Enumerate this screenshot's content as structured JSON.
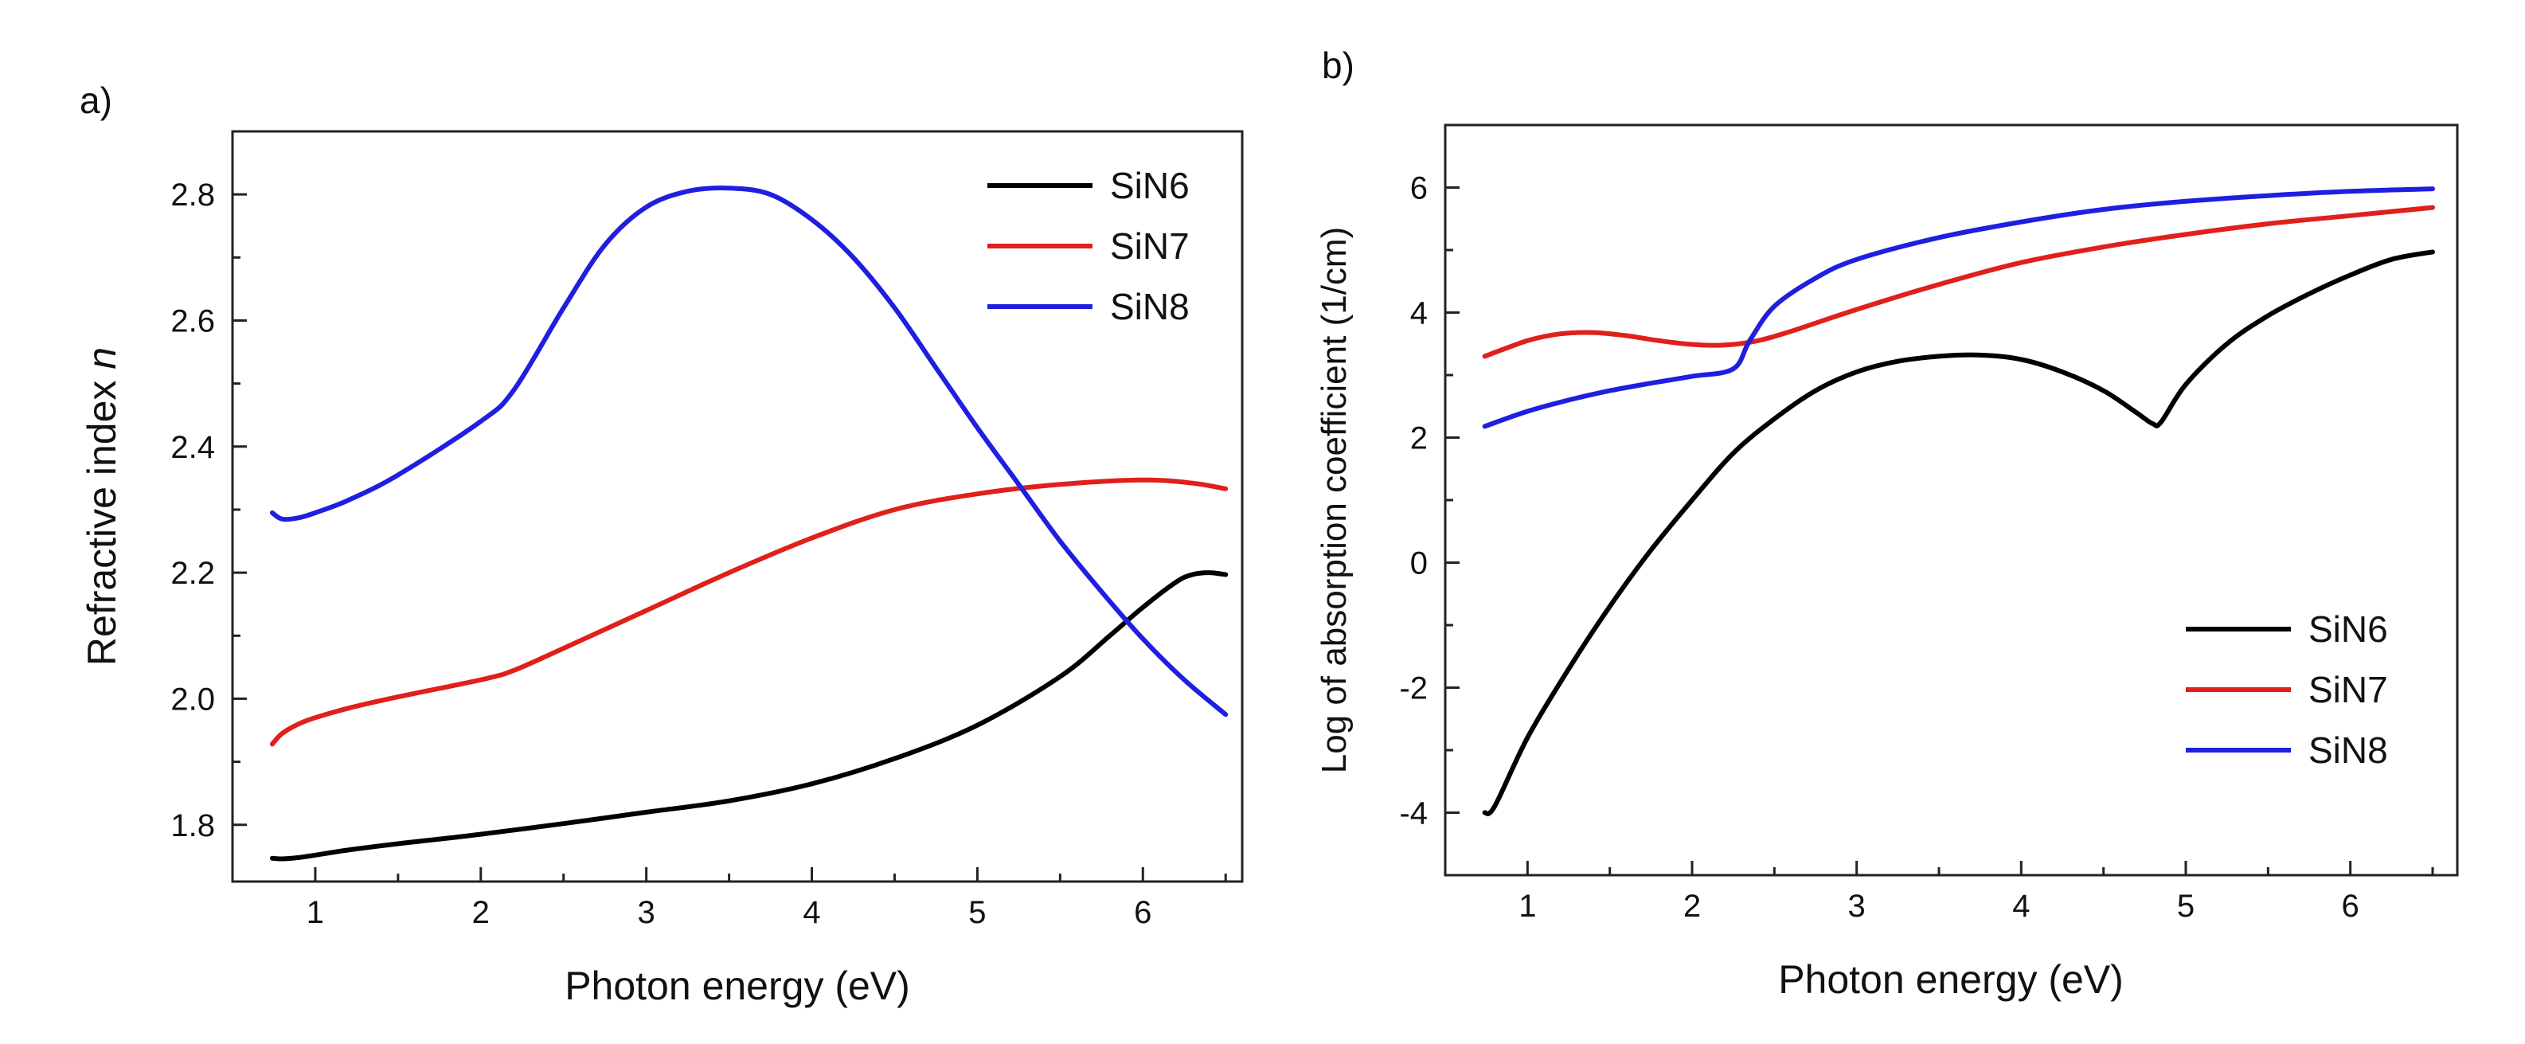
{
  "chart_data": [
    {
      "type": "line",
      "panel_label": "a)",
      "title": "",
      "xlabel": "Photon energy (eV)",
      "ylabel": "Refractive index",
      "ylabel_italic": "n",
      "xlim": [
        0.5,
        6.6
      ],
      "ylim": [
        1.71,
        2.9
      ],
      "xticks": [
        1,
        2,
        3,
        4,
        5,
        6
      ],
      "xtick_labels": [
        "1",
        "2",
        "3",
        "4",
        "5",
        "6"
      ],
      "xminor": [
        1.5,
        2.5,
        3.5,
        4.5,
        5.5,
        6.5
      ],
      "yticks": [
        1.8,
        2.0,
        2.2,
        2.4,
        2.6,
        2.8
      ],
      "ytick_labels": [
        "1.8",
        "2.0",
        "2.2",
        "2.4",
        "2.6",
        "2.8"
      ],
      "yminor": [
        1.9,
        2.1,
        2.3,
        2.5,
        2.7
      ],
      "legend_position": "top-right",
      "series": [
        {
          "name": "SiN6",
          "color": "#000000",
          "x": [
            0.74,
            0.8,
            0.9,
            1.0,
            1.2,
            1.5,
            2.0,
            2.5,
            3.0,
            3.5,
            4.0,
            4.5,
            5.0,
            5.5,
            5.8,
            6.0,
            6.2,
            6.3,
            6.4,
            6.5
          ],
          "y": [
            1.747,
            1.746,
            1.748,
            1.752,
            1.76,
            1.77,
            1.785,
            1.802,
            1.82,
            1.838,
            1.865,
            1.905,
            1.958,
            2.035,
            2.1,
            2.145,
            2.185,
            2.197,
            2.2,
            2.197
          ]
        },
        {
          "name": "SiN7",
          "color": "#e0201b",
          "x": [
            0.74,
            0.8,
            0.9,
            1.0,
            1.2,
            1.5,
            2.0,
            2.2,
            2.5,
            3.0,
            3.5,
            4.0,
            4.5,
            5.0,
            5.5,
            6.0,
            6.3,
            6.5
          ],
          "y": [
            1.928,
            1.945,
            1.96,
            1.97,
            1.985,
            2.003,
            2.03,
            2.045,
            2.08,
            2.14,
            2.2,
            2.255,
            2.3,
            2.325,
            2.34,
            2.347,
            2.342,
            2.333
          ]
        },
        {
          "name": "SiN8",
          "color": "#1f1fe0",
          "x": [
            0.74,
            0.8,
            0.9,
            1.0,
            1.2,
            1.5,
            2.0,
            2.2,
            2.5,
            2.75,
            3.0,
            3.25,
            3.5,
            3.75,
            4.0,
            4.25,
            4.5,
            4.75,
            5.0,
            5.25,
            5.5,
            5.75,
            6.0,
            6.25,
            6.5
          ],
          "y": [
            2.295,
            2.285,
            2.287,
            2.295,
            2.315,
            2.355,
            2.44,
            2.49,
            2.62,
            2.72,
            2.78,
            2.805,
            2.81,
            2.8,
            2.76,
            2.7,
            2.62,
            2.525,
            2.43,
            2.34,
            2.25,
            2.17,
            2.095,
            2.03,
            1.975
          ]
        }
      ]
    },
    {
      "type": "line",
      "panel_label": "b)",
      "title": "",
      "xlabel": "Photon energy (eV)",
      "ylabel": "Log of absorption coefficient (1/cm)",
      "xlim": [
        0.5,
        6.65
      ],
      "ylim": [
        -5,
        7
      ],
      "xticks": [
        1,
        2,
        3,
        4,
        5,
        6
      ],
      "xtick_labels": [
        "1",
        "2",
        "3",
        "4",
        "5",
        "6"
      ],
      "xminor": [
        1.5,
        2.5,
        3.5,
        4.5,
        5.5,
        6.5
      ],
      "yticks": [
        -4,
        -2,
        0,
        2,
        4,
        6
      ],
      "ytick_labels": [
        "-4",
        "-2",
        "0",
        "2",
        "4",
        "6"
      ],
      "yminor": [
        -3,
        -1,
        1,
        3,
        5
      ],
      "legend_position": "bottom-right",
      "series": [
        {
          "name": "SiN6",
          "color": "#000000",
          "x": [
            0.74,
            0.8,
            1.0,
            1.25,
            1.5,
            1.75,
            2.0,
            2.25,
            2.5,
            2.75,
            3.0,
            3.25,
            3.5,
            3.75,
            4.0,
            4.25,
            4.5,
            4.7,
            4.8,
            4.85,
            5.0,
            5.25,
            5.5,
            5.75,
            6.0,
            6.25,
            6.5
          ],
          "y": [
            -4.0,
            -3.9,
            -2.8,
            -1.7,
            -0.7,
            0.2,
            1.0,
            1.75,
            2.3,
            2.75,
            3.05,
            3.22,
            3.3,
            3.32,
            3.25,
            3.05,
            2.75,
            2.4,
            2.22,
            2.25,
            2.85,
            3.5,
            3.95,
            4.3,
            4.6,
            4.85,
            4.97
          ]
        },
        {
          "name": "SiN7",
          "color": "#e0201b",
          "x": [
            0.74,
            1.0,
            1.2,
            1.4,
            1.6,
            1.8,
            2.0,
            2.2,
            2.4,
            2.6,
            3.0,
            3.5,
            4.0,
            4.5,
            5.0,
            5.5,
            6.0,
            6.5
          ],
          "y": [
            3.3,
            3.55,
            3.66,
            3.68,
            3.63,
            3.55,
            3.49,
            3.48,
            3.55,
            3.7,
            4.05,
            4.45,
            4.8,
            5.05,
            5.25,
            5.42,
            5.55,
            5.68
          ]
        },
        {
          "name": "SiN8",
          "color": "#1f1fe0",
          "x": [
            0.74,
            1.0,
            1.25,
            1.5,
            1.75,
            2.0,
            2.25,
            2.35,
            2.5,
            2.75,
            3.0,
            3.5,
            4.0,
            4.5,
            5.0,
            5.5,
            6.0,
            6.5
          ],
          "y": [
            2.18,
            2.42,
            2.6,
            2.75,
            2.87,
            2.98,
            3.1,
            3.55,
            4.1,
            4.55,
            4.85,
            5.2,
            5.45,
            5.65,
            5.78,
            5.87,
            5.94,
            5.98
          ]
        }
      ]
    }
  ]
}
